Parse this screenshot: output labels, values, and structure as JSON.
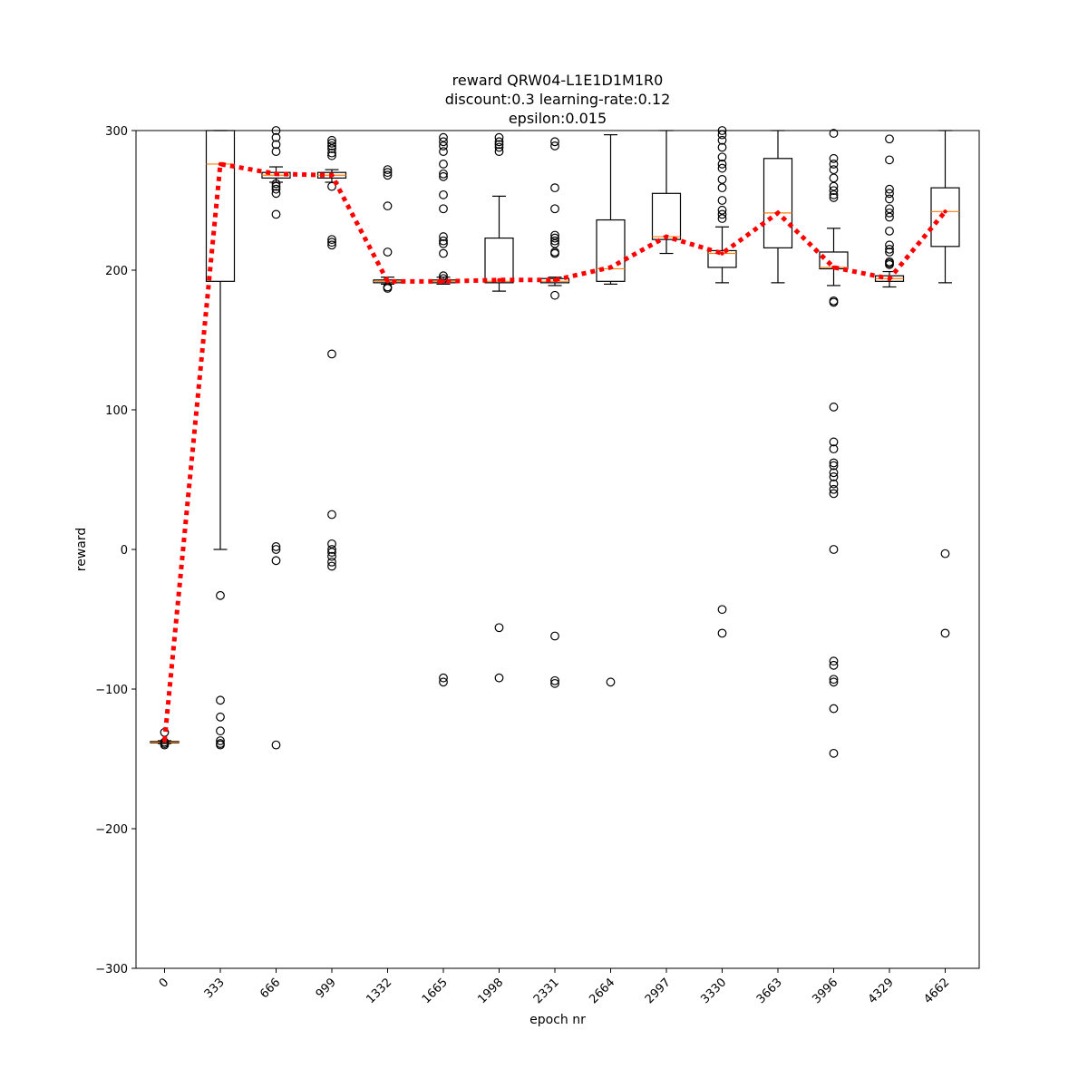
{
  "chart_data": {
    "type": "box",
    "title_lines": [
      "reward QRW04-L1E1D1M1R0",
      "discount:0.3 learning-rate:0.12",
      "epsilon:0.015"
    ],
    "xlabel": "epoch nr",
    "ylabel": "reward",
    "ylim": [
      -300,
      300
    ],
    "yticks": [
      -300,
      -200,
      -100,
      0,
      100,
      200,
      300
    ],
    "categories": [
      "0",
      "333",
      "666",
      "999",
      "1332",
      "1665",
      "1998",
      "2331",
      "2664",
      "2997",
      "3330",
      "3663",
      "3996",
      "4329",
      "4662"
    ],
    "grid": false,
    "colors": {
      "box": "#000000",
      "median": "#ff7f0e",
      "mean_line": "#ff0000"
    },
    "boxes": [
      {
        "category": "0",
        "q1": -138.5,
        "median": -138,
        "q3": -137.5,
        "whisker_low": -139,
        "whisker_high": -137,
        "outliers": [
          -140,
          -139,
          -131,
          -138
        ]
      },
      {
        "category": "333",
        "q1": 192,
        "median": 276,
        "q3": 300,
        "whisker_low": 0,
        "whisker_high": 300,
        "outliers": [
          -33,
          -108,
          -120,
          -130,
          -137,
          -139,
          -140
        ]
      },
      {
        "category": "666",
        "q1": 266,
        "median": 268,
        "q3": 270,
        "whisker_low": 263,
        "whisker_high": 274,
        "outliers": [
          300,
          295,
          290,
          285,
          262,
          260,
          258,
          255,
          240,
          2,
          0,
          -8,
          -140
        ]
      },
      {
        "category": "999",
        "q1": 266,
        "median": 268,
        "q3": 270,
        "whisker_low": 263,
        "whisker_high": 272,
        "outliers": [
          293,
          291,
          289,
          287,
          284,
          282,
          260,
          222,
          220,
          218,
          140,
          25,
          4,
          0,
          -2,
          -5,
          -9,
          -12
        ]
      },
      {
        "category": "1332",
        "q1": 191,
        "median": 192,
        "q3": 193,
        "whisker_low": 190,
        "whisker_high": 195,
        "outliers": [
          272,
          270,
          268,
          246,
          213,
          188,
          187
        ]
      },
      {
        "category": "1665",
        "q1": 191,
        "median": 192,
        "q3": 193,
        "whisker_low": 190,
        "whisker_high": 195,
        "outliers": [
          295,
          292,
          289,
          285,
          276,
          269,
          267,
          254,
          244,
          224,
          221,
          219,
          212,
          196,
          194,
          -92,
          -95
        ]
      },
      {
        "category": "1998",
        "q1": 191,
        "median": 192,
        "q3": 223,
        "whisker_low": 185,
        "whisker_high": 253,
        "outliers": [
          295,
          292,
          290,
          288,
          285,
          -56,
          -92
        ]
      },
      {
        "category": "2331",
        "q1": 191,
        "median": 192,
        "q3": 194,
        "whisker_low": 189,
        "whisker_high": 195,
        "outliers": [
          292,
          289,
          259,
          244,
          225,
          223,
          221,
          219,
          213,
          212,
          182,
          -62,
          -94,
          -96
        ]
      },
      {
        "category": "2664",
        "q1": 192,
        "median": 201,
        "q3": 236,
        "whisker_low": 190,
        "whisker_high": 297,
        "outliers": [
          -95
        ]
      },
      {
        "category": "2997",
        "q1": 222,
        "median": 224,
        "q3": 255,
        "whisker_low": 212,
        "whisker_high": 300,
        "outliers": []
      },
      {
        "category": "3330",
        "q1": 202,
        "median": 212,
        "q3": 214,
        "whisker_low": 191,
        "whisker_high": 231,
        "outliers": [
          300,
          297,
          293,
          288,
          281,
          276,
          273,
          265,
          259,
          250,
          243,
          240,
          237,
          -43,
          -60
        ]
      },
      {
        "category": "3663",
        "q1": 216,
        "median": 241,
        "q3": 280,
        "whisker_low": 191,
        "whisker_high": 300,
        "outliers": []
      },
      {
        "category": "3996",
        "q1": 201,
        "median": 202,
        "q3": 213,
        "whisker_low": 189,
        "whisker_high": 230,
        "outliers": [
          298,
          280,
          276,
          272,
          266,
          260,
          257,
          254,
          252,
          178,
          177,
          102,
          77,
          72,
          62,
          60,
          55,
          52,
          47,
          43,
          40,
          0,
          -80,
          -83,
          -93,
          -95,
          -114,
          -146
        ]
      },
      {
        "category": "4329",
        "q1": 192,
        "median": 194,
        "q3": 196,
        "whisker_low": 188,
        "whisker_high": 199,
        "outliers": [
          294,
          279,
          258,
          255,
          251,
          244,
          241,
          238,
          228,
          218,
          215,
          213,
          206,
          205,
          204
        ]
      },
      {
        "category": "4662",
        "q1": 217,
        "median": 242,
        "q3": 259,
        "whisker_low": 191,
        "whisker_high": 300,
        "outliers": [
          -3,
          -60
        ]
      }
    ],
    "mean_series": {
      "values": [
        -137,
        276,
        269,
        268,
        192,
        192,
        193,
        193,
        202,
        224,
        212,
        241,
        202,
        194,
        242
      ]
    }
  }
}
